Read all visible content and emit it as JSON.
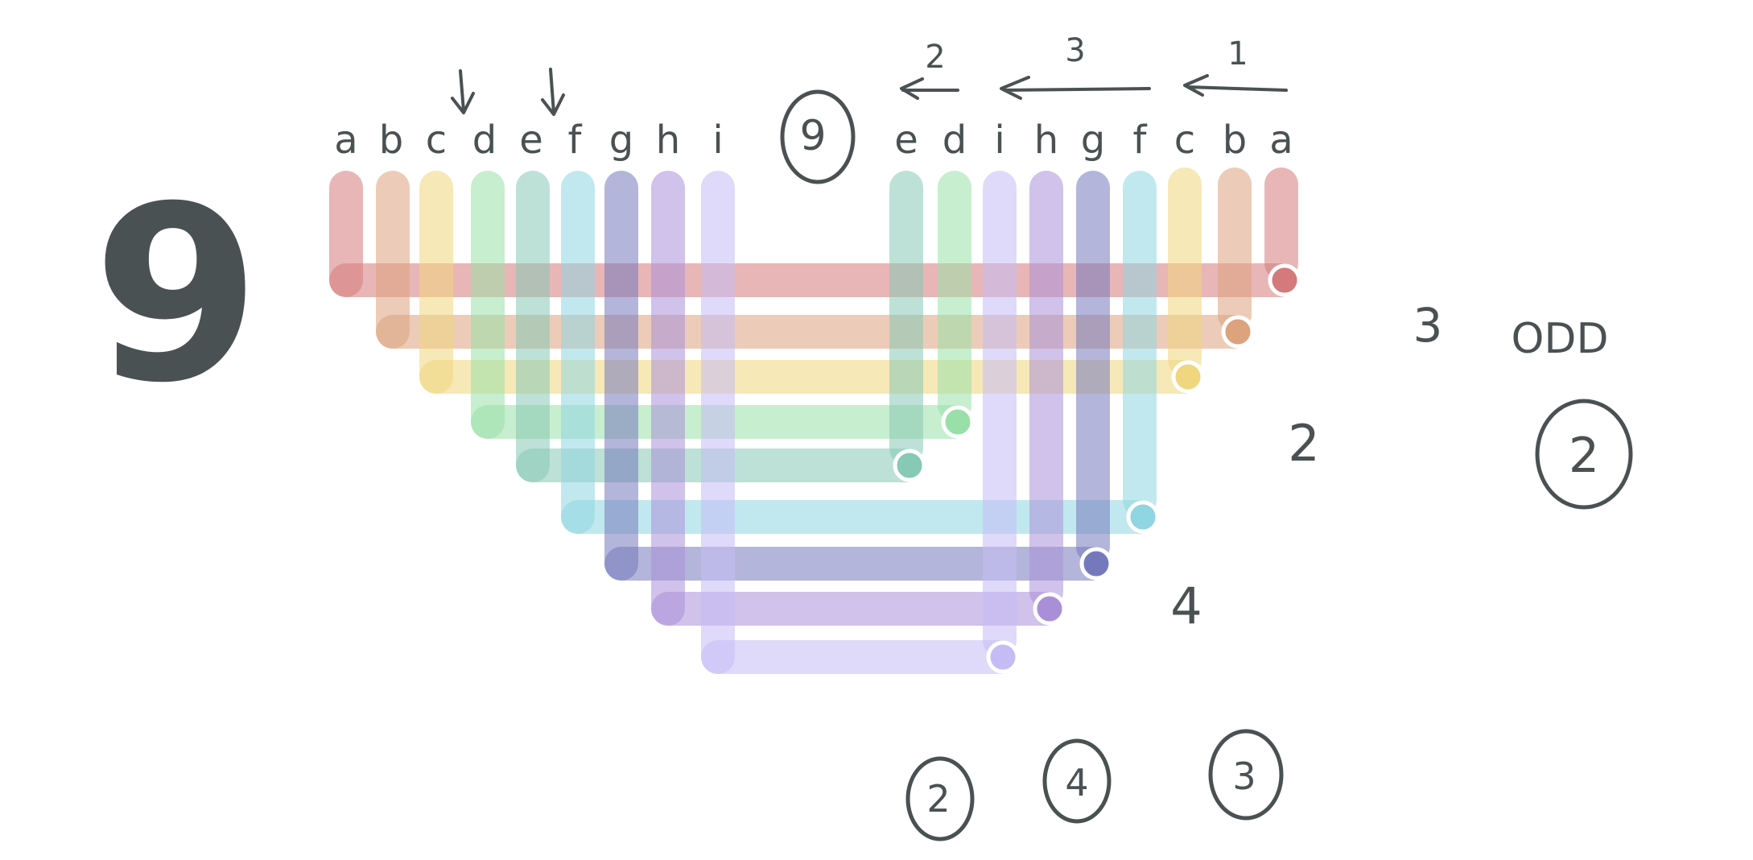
{
  "big_number": "9",
  "circled_total": "9",
  "left_letters": [
    "a",
    "b",
    "c",
    "d",
    "e",
    "f",
    "g",
    "h",
    "i"
  ],
  "right_letters": [
    "e",
    "d",
    "i",
    "h",
    "g",
    "f",
    "c",
    "b",
    "a"
  ],
  "group_numbers": [
    "2",
    "3",
    "1"
  ],
  "side_notes": {
    "count_3": "3",
    "odd": "ODD",
    "count_2": "2",
    "circled_2": "2",
    "count_4": "4"
  },
  "bottom_circled": [
    "2",
    "4",
    "3"
  ],
  "colors": {
    "a": "#d57a7c",
    "b": "#dca37d",
    "c": "#f0d67e",
    "d": "#99e0a8",
    "e": "#86c9b4",
    "f": "#8fd5e2",
    "g": "#7579bc",
    "h": "#a98fd8",
    "i": "#c5bcf6",
    "ink": "#4a5152"
  }
}
